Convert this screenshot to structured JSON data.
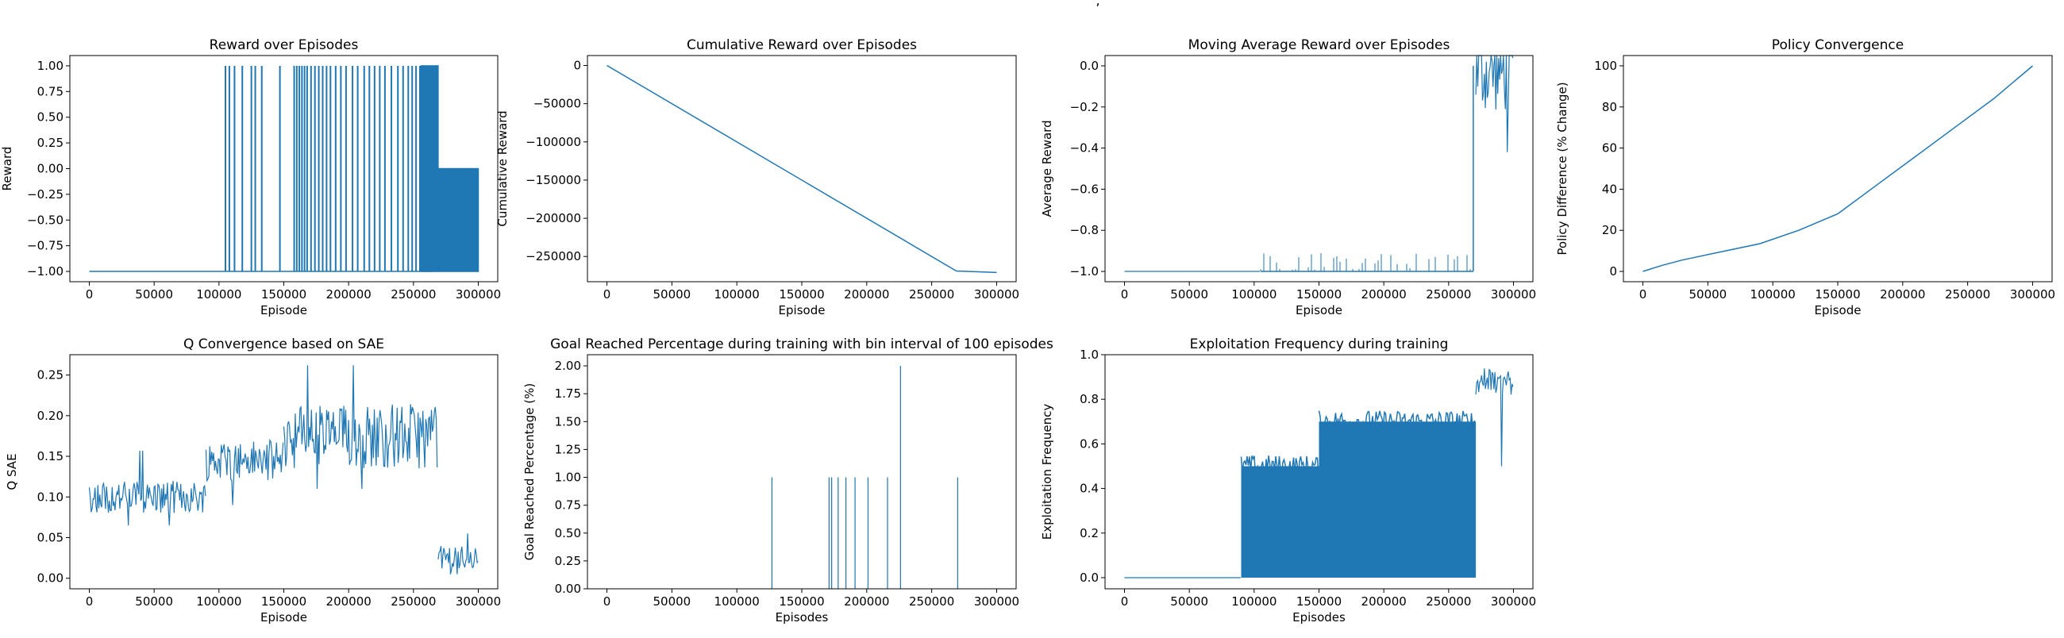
{
  "figure": {
    "suptitle_fragment": ","
  },
  "chart_data": [
    {
      "type": "line",
      "title": "Reward over Episodes",
      "xlabel": "Episode",
      "ylabel": "Reward",
      "xlim": [
        -15000,
        315000
      ],
      "ylim": [
        -1.1,
        1.1
      ],
      "xticks": [
        0,
        50000,
        100000,
        150000,
        200000,
        250000,
        300000
      ],
      "xticklabels": [
        "0",
        "50000",
        "100000",
        "150000",
        "200000",
        "250000",
        "300000"
      ],
      "yticks": [
        -1.0,
        -0.75,
        -0.5,
        -0.25,
        0.0,
        0.25,
        0.5,
        0.75,
        1.0
      ],
      "yticklabels": [
        "−1.00",
        "−0.75",
        "−0.50",
        "−0.25",
        "0.00",
        "0.25",
        "0.50",
        "0.75",
        "1.00"
      ],
      "color": "#1f77b4",
      "pattern": "spikes",
      "segments": [
        {
          "x_start": 0,
          "x_end": 105000,
          "baseline": -1.0
        },
        {
          "x_start": 105000,
          "x_end": 265000,
          "baseline": -1.0,
          "spikes_to": 1.0,
          "spike_x": [
            105000,
            108000,
            112000,
            118000,
            125000,
            128000,
            133000,
            147000,
            158000,
            160000,
            162000,
            164000,
            166000,
            168000,
            171000,
            174000,
            177000,
            180000,
            183000,
            186000,
            190000,
            194000,
            198000,
            203000,
            207000,
            212000,
            216000,
            220000,
            224000,
            228000,
            233000,
            238000,
            242000,
            246000,
            249000,
            252000,
            255000,
            258000,
            261000,
            264000
          ]
        },
        {
          "x_start": 256000,
          "x_end": 269000,
          "band": [
            -1.0,
            1.0
          ]
        },
        {
          "x_start": 269000,
          "x_end": 300000,
          "band": [
            -1.0,
            0.0
          ]
        }
      ]
    },
    {
      "type": "line",
      "title": "Cumulative Reward over Episodes",
      "xlabel": "Episode",
      "ylabel": "Cumulative Reward",
      "xlim": [
        -15000,
        315000
      ],
      "ylim": [
        -283000,
        13000
      ],
      "xticks": [
        0,
        50000,
        100000,
        150000,
        200000,
        250000,
        300000
      ],
      "xticklabels": [
        "0",
        "50000",
        "100000",
        "150000",
        "200000",
        "250000",
        "300000"
      ],
      "yticks": [
        -250000,
        -200000,
        -150000,
        -100000,
        -50000,
        0
      ],
      "yticklabels": [
        "−250000",
        "−200000",
        "−150000",
        "−100000",
        "−50000",
        "0"
      ],
      "color": "#1f77b4",
      "pattern": "polyline",
      "x": [
        0,
        269000,
        300000
      ],
      "y": [
        0,
        -269000,
        -271000
      ]
    },
    {
      "type": "line",
      "title": "Moving Average Reward over Episodes",
      "xlabel": "Episode",
      "ylabel": "Average Reward",
      "xlim": [
        -15000,
        315000
      ],
      "ylim": [
        -1.05,
        0.05
      ],
      "xticks": [
        0,
        50000,
        100000,
        150000,
        200000,
        250000,
        300000
      ],
      "xticklabels": [
        "0",
        "50000",
        "100000",
        "150000",
        "200000",
        "250000",
        "300000"
      ],
      "yticks": [
        -1.0,
        -0.8,
        -0.6,
        -0.4,
        -0.2,
        0.0
      ],
      "yticklabels": [
        "−1.0",
        "−0.8",
        "−0.6",
        "−0.4",
        "−0.2",
        "0.0"
      ],
      "color": "#1f77b4",
      "pattern": "noisy",
      "segments": [
        {
          "x_start": 0,
          "x_end": 105000,
          "base": -1.0,
          "amp": 0.0
        },
        {
          "x_start": 105000,
          "x_end": 269000,
          "base": -1.0,
          "spikes_up_to": -0.91
        },
        {
          "x_start": 269000,
          "x_end": 271000,
          "jump": [
            -1.0,
            0.0
          ]
        },
        {
          "x_start": 271000,
          "x_end": 300000,
          "base": -0.03,
          "amp": 0.2,
          "min": -0.42
        }
      ]
    },
    {
      "type": "line",
      "title": "Policy Convergence",
      "xlabel": "Episode",
      "ylabel": "Policy Difference (% Change)",
      "xlim": [
        -15000,
        315000
      ],
      "ylim": [
        -5,
        105
      ],
      "xticks": [
        0,
        50000,
        100000,
        150000,
        200000,
        250000,
        300000
      ],
      "xticklabels": [
        "0",
        "50000",
        "100000",
        "150000",
        "200000",
        "250000",
        "300000"
      ],
      "yticks": [
        0,
        20,
        40,
        60,
        80,
        100
      ],
      "yticklabels": [
        "0",
        "20",
        "40",
        "60",
        "80",
        "100"
      ],
      "color": "#1f77b4",
      "pattern": "polyline",
      "x": [
        0,
        15000,
        30000,
        60000,
        90000,
        120000,
        150000,
        180000,
        210000,
        240000,
        270000,
        300000
      ],
      "y": [
        0,
        3,
        5.5,
        9.5,
        13.5,
        20,
        28,
        42,
        56,
        70,
        84,
        100
      ]
    },
    {
      "type": "line",
      "title": "Q Convergence based on SAE",
      "xlabel": "Episode",
      "ylabel": "Q SAE",
      "xlim": [
        -15000,
        315000
      ],
      "ylim": [
        -0.013,
        0.275
      ],
      "xticks": [
        0,
        50000,
        100000,
        150000,
        200000,
        250000,
        300000
      ],
      "xticklabels": [
        "0",
        "50000",
        "100000",
        "150000",
        "200000",
        "250000",
        "300000"
      ],
      "yticks": [
        0.0,
        0.05,
        0.1,
        0.15,
        0.2,
        0.25
      ],
      "yticklabels": [
        "0.00",
        "0.05",
        "0.10",
        "0.15",
        "0.20",
        "0.25"
      ],
      "color": "#1f77b4",
      "pattern": "noisy",
      "segments": [
        {
          "x_start": 0,
          "x_end": 90000,
          "base": 0.1,
          "amp": 0.02,
          "max": 0.157,
          "min": 0.065
        },
        {
          "x_start": 90000,
          "x_end": 150000,
          "base": 0.145,
          "amp": 0.025,
          "max": 0.185,
          "min": 0.09
        },
        {
          "x_start": 150000,
          "x_end": 269000,
          "base": 0.175,
          "amp": 0.04,
          "max": 0.262,
          "min": 0.11
        },
        {
          "x_start": 269000,
          "x_end": 300000,
          "base": 0.025,
          "amp": 0.015,
          "max": 0.055,
          "min": 0.005
        }
      ]
    },
    {
      "type": "bar",
      "title": "Goal Reached Percentage during training with bin interval of 100 episodes",
      "xlabel": "Episodes",
      "ylabel": "Goal Reached Percentage (%)",
      "xlim": [
        -15000,
        315000
      ],
      "ylim": [
        0,
        2.1
      ],
      "xticks": [
        0,
        50000,
        100000,
        150000,
        200000,
        250000,
        300000
      ],
      "xticklabels": [
        "0",
        "50000",
        "100000",
        "150000",
        "200000",
        "250000",
        "300000"
      ],
      "yticks": [
        0.0,
        0.25,
        0.5,
        0.75,
        1.0,
        1.25,
        1.5,
        1.75,
        2.0
      ],
      "yticklabels": [
        "0.00",
        "0.25",
        "0.50",
        "0.75",
        "1.00",
        "1.25",
        "1.50",
        "1.75",
        "2.00"
      ],
      "color": "#1f77b4",
      "pattern": "bars",
      "x": [
        127000,
        171000,
        173000,
        178000,
        184000,
        191000,
        201000,
        216000,
        226000,
        270000
      ],
      "values": [
        1,
        1,
        1,
        1,
        1,
        1,
        1,
        1,
        2,
        1
      ]
    },
    {
      "type": "line",
      "title": "Exploitation Frequency during training",
      "xlabel": "Episodes",
      "ylabel": "Exploitation Frequency",
      "xlim": [
        -15000,
        315000
      ],
      "ylim": [
        -0.05,
        1.0
      ],
      "xticks": [
        0,
        50000,
        100000,
        150000,
        200000,
        250000,
        300000
      ],
      "xticklabels": [
        "0",
        "50000",
        "100000",
        "150000",
        "200000",
        "250000",
        "300000"
      ],
      "yticks": [
        0.0,
        0.2,
        0.4,
        0.6,
        0.8,
        1.0
      ],
      "yticklabels": [
        "0.0",
        "0.2",
        "0.4",
        "0.6",
        "0.8",
        "1.0"
      ],
      "color": "#1f77b4",
      "pattern": "noisy",
      "segments": [
        {
          "x_start": 0,
          "x_end": 90000,
          "base": 0.0,
          "amp": 0.0
        },
        {
          "x_start": 90000,
          "x_end": 150000,
          "band": [
            0.0,
            0.5
          ],
          "top_noise": 0.05
        },
        {
          "x_start": 150000,
          "x_end": 271000,
          "band": [
            0.0,
            0.7
          ],
          "top_noise": 0.05
        },
        {
          "x_start": 271000,
          "x_end": 300000,
          "base": 0.88,
          "amp": 0.06,
          "min": 0.5,
          "max": 0.95
        }
      ]
    }
  ]
}
